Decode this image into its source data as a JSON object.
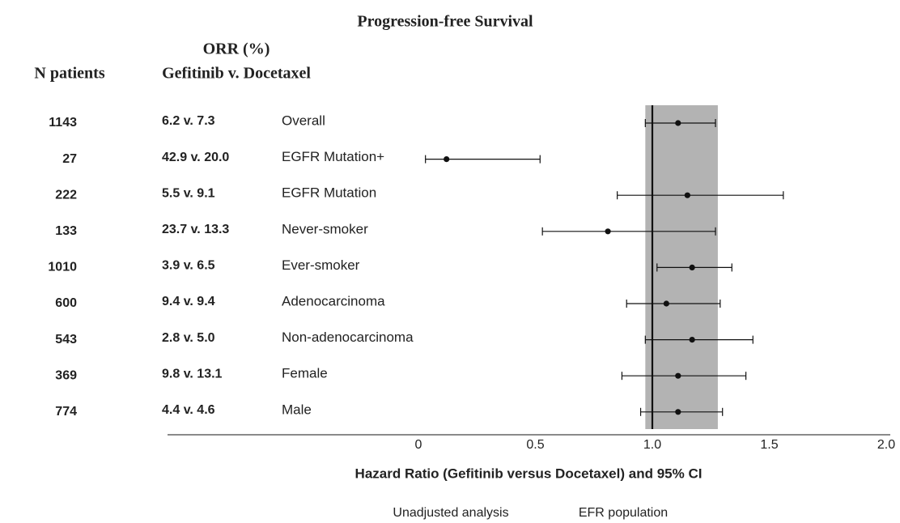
{
  "chart_data": {
    "type": "forest",
    "title": "Progression-free Survival",
    "n_header": "N patients",
    "orr_header": [
      "ORR (%)",
      "Gefitinib v. Docetaxel"
    ],
    "categories": [
      "Overall",
      "EGFR Mutation+",
      "EGFR Mutation",
      "Never-smoker",
      "Ever-smoker",
      "Adenocarcinoma",
      "Non-adenocarcinoma",
      "Female",
      "Male"
    ],
    "n_patients": [
      1143,
      27,
      222,
      133,
      1010,
      600,
      543,
      369,
      774
    ],
    "orr": [
      "6.2 v. 7.3",
      "42.9 v. 20.0",
      "5.5 v. 9.1",
      "23.7 v. 13.3",
      "3.9 v. 6.5",
      "9.4 v. 9.4",
      "2.8 v. 5.0",
      "9.8 v. 13.1",
      "4.4 v. 4.6"
    ],
    "values": [
      1.11,
      0.12,
      1.15,
      0.81,
      1.17,
      1.06,
      1.17,
      1.11,
      1.11
    ],
    "lower": [
      0.97,
      0.03,
      0.85,
      0.53,
      1.02,
      0.89,
      0.97,
      0.87,
      0.95
    ],
    "upper": [
      1.27,
      0.52,
      1.56,
      1.27,
      1.34,
      1.29,
      1.43,
      1.4,
      1.3
    ],
    "band": [
      0.97,
      1.28
    ],
    "reference": 1,
    "color": "#111111",
    "band_color": "#b3b3b3",
    "xlim": [
      0,
      2
    ],
    "xticks": [
      0,
      0.5,
      {
        "value": 1,
        "label": "1.0"
      },
      1.5,
      {
        "value": 2,
        "label": "2.0"
      }
    ],
    "xlabel": "Hazard Ratio (Gefitinib versus Docetaxel) and 95% CI",
    "notes": [
      "Unadjusted analysis",
      "EFR population"
    ]
  }
}
